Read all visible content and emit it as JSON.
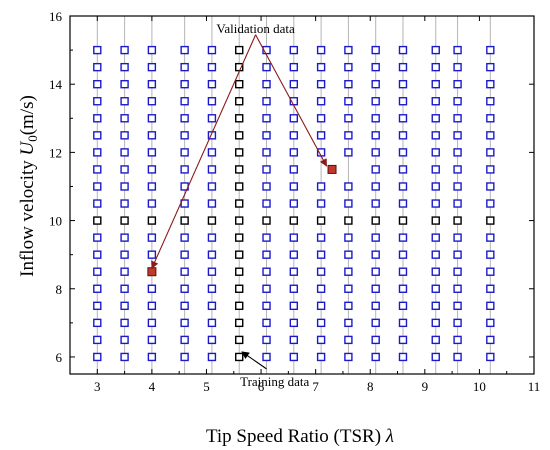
{
  "chart_data": {
    "type": "scatter",
    "xlabel": "Tip Speed Ratio (TSR) λ",
    "xlabel_text": "Tip Speed Ratio (TSR) ",
    "xlabel_symbol": "λ",
    "ylabel_prefix": "Inflow velocity ",
    "ylabel_symbol": "U",
    "ylabel_subscript": "0",
    "ylabel_suffix": "(m/s)",
    "xlim": [
      2.5,
      11
    ],
    "ylim": [
      5.5,
      16
    ],
    "xticks": [
      3,
      4,
      5,
      6,
      7,
      8,
      9,
      10,
      11
    ],
    "yticks": [
      6,
      8,
      10,
      12,
      14,
      16
    ],
    "grid": "vertical lines at sampled TSR values",
    "tsr_values": [
      3,
      3.5,
      4,
      4.6,
      5.1,
      5.6,
      6.1,
      6.6,
      7.1,
      7.6,
      8.1,
      8.6,
      9.2,
      9.6,
      10.2
    ],
    "u0_values": [
      6,
      6.5,
      7,
      7.5,
      8,
      8.5,
      9,
      9.5,
      10,
      10.5,
      11,
      11.5,
      12,
      12.5,
      13,
      13.5,
      14,
      14.5,
      15
    ],
    "series": [
      {
        "name": "Training data",
        "marker": "open-square",
        "color": "#1a1acc",
        "highlight_color": "#000000",
        "highlight_column_x": 5.6,
        "highlight_row_y": 10
      },
      {
        "name": "Validation data",
        "marker": "filled-square",
        "color": "#c0392b",
        "points": [
          {
            "x": 4.0,
            "y": 8.5
          },
          {
            "x": 7.3,
            "y": 11.5
          }
        ]
      }
    ],
    "annotations": [
      {
        "text": "Validation data",
        "label_x": 5.9,
        "label_y": 15.65,
        "arrow_from": [
          5.9,
          15.45
        ],
        "arrow_to": [
          [
            4.0,
            8.6
          ],
          [
            7.2,
            11.6
          ]
        ],
        "arrow_color": "#8b1a1a"
      },
      {
        "text": "Training data",
        "label_x": 6.25,
        "label_y": 5.3,
        "arrow_from": [
          6.1,
          5.65
        ],
        "arrow_to": [
          [
            5.65,
            6.15
          ]
        ],
        "arrow_color": "#000000"
      }
    ],
    "colors": {
      "grid": "#b5b5b5",
      "axis": "#000000"
    }
  }
}
